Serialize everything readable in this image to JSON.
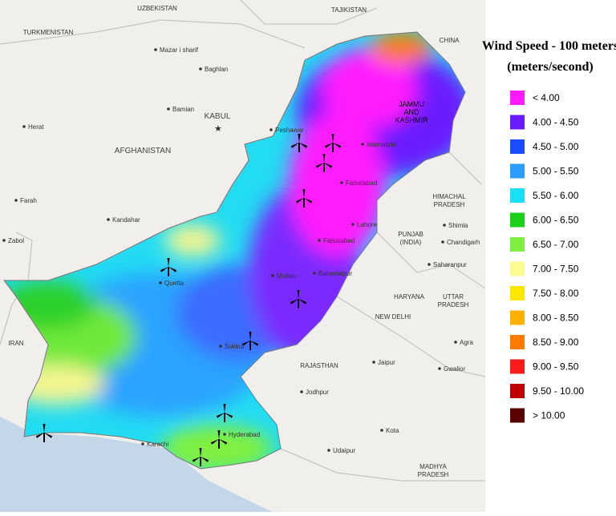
{
  "legend": {
    "title_lines": [
      "Wind Speed - 100 meters",
      "(meters/second)"
    ],
    "items": [
      {
        "label": "< 4.00",
        "color": "#ff1aff"
      },
      {
        "label": "4.00 - 4.50",
        "color": "#6a1aff"
      },
      {
        "label": "4.50 - 5.00",
        "color": "#1a4dff"
      },
      {
        "label": "5.00 - 5.50",
        "color": "#2a9dff"
      },
      {
        "label": "5.50 - 6.00",
        "color": "#1ae0f5"
      },
      {
        "label": "6.00 - 6.50",
        "color": "#1ad01a"
      },
      {
        "label": "6.50 - 7.00",
        "color": "#80f040"
      },
      {
        "label": "7.00 - 7.50",
        "color": "#fbfb90"
      },
      {
        "label": "7.50 - 8.00",
        "color": "#ffe600"
      },
      {
        "label": "8.00 - 8.50",
        "color": "#ffb000"
      },
      {
        "label": "8.50 - 9.00",
        "color": "#ff7a00"
      },
      {
        "label": "9.00 - 9.50",
        "color": "#ff1a1a"
      },
      {
        "label": "9.50 - 10.00",
        "color": "#c00000"
      },
      {
        "label": "> 10.00",
        "color": "#5a0000"
      }
    ]
  },
  "places": [
    {
      "lines": [
        "UZBEKISTAN"
      ],
      "kind": "region"
    },
    {
      "lines": [
        "TAJIKISTAN"
      ],
      "kind": "region"
    },
    {
      "lines": [
        "TURKMENISTAN"
      ],
      "kind": "region"
    },
    {
      "lines": [
        "CHINA"
      ],
      "kind": "region"
    },
    {
      "lines": [
        "Mazar i sharif"
      ],
      "kind": "city"
    },
    {
      "lines": [
        "Baghlan"
      ],
      "kind": "city"
    },
    {
      "lines": [
        "Bamian"
      ],
      "kind": "city"
    },
    {
      "lines": [
        "KABUL"
      ],
      "kind": "capital"
    },
    {
      "lines": [
        "Herat"
      ],
      "kind": "city"
    },
    {
      "lines": [
        "AFGHANISTAN"
      ],
      "kind": "country"
    },
    {
      "lines": [
        "Farah"
      ],
      "kind": "city"
    },
    {
      "lines": [
        "Kandahar"
      ],
      "kind": "city"
    },
    {
      "lines": [
        "Zabol"
      ],
      "kind": "city"
    },
    {
      "lines": [
        "IRAN"
      ],
      "kind": "region"
    },
    {
      "lines": [
        "Peshawar"
      ],
      "kind": "city"
    },
    {
      "lines": [
        "Islamabad"
      ],
      "kind": "city"
    },
    {
      "lines": [
        "JAMMU",
        "AND",
        "KASHMIR"
      ],
      "kind": "inner"
    },
    {
      "lines": [
        "Faisalabad"
      ],
      "kind": "city"
    },
    {
      "lines": [
        "Lahore"
      ],
      "kind": "city"
    },
    {
      "lines": [
        "Faisalabad"
      ],
      "kind": "city"
    },
    {
      "lines": [
        "HIMACHAL",
        "PRADESH"
      ],
      "kind": "region"
    },
    {
      "lines": [
        "Shimla"
      ],
      "kind": "city"
    },
    {
      "lines": [
        "PUNJAB",
        "(INDIA)"
      ],
      "kind": "region"
    },
    {
      "lines": [
        "Chandigarh"
      ],
      "kind": "city"
    },
    {
      "lines": [
        "Saharanpur"
      ],
      "kind": "city"
    },
    {
      "lines": [
        "Quetta"
      ],
      "kind": "city"
    },
    {
      "lines": [
        "Multan"
      ],
      "kind": "city"
    },
    {
      "lines": [
        "Bahawalpur"
      ],
      "kind": "city"
    },
    {
      "lines": [
        "HARYANA"
      ],
      "kind": "region"
    },
    {
      "lines": [
        "UTTAR",
        "PRADESH"
      ],
      "kind": "region"
    },
    {
      "lines": [
        "NEW DELHI"
      ],
      "kind": "region"
    },
    {
      "lines": [
        "Sukkur"
      ],
      "kind": "city"
    },
    {
      "lines": [
        "Agra"
      ],
      "kind": "city"
    },
    {
      "lines": [
        "RAJASTHAN"
      ],
      "kind": "region"
    },
    {
      "lines": [
        "Jaipur"
      ],
      "kind": "city"
    },
    {
      "lines": [
        "Gwalior"
      ],
      "kind": "city"
    },
    {
      "lines": [
        "Jodhpur"
      ],
      "kind": "city"
    },
    {
      "lines": [
        "Karachi"
      ],
      "kind": "city"
    },
    {
      "lines": [
        "Hyderabad"
      ],
      "kind": "city"
    },
    {
      "lines": [
        "Kota"
      ],
      "kind": "city"
    },
    {
      "lines": [
        "Udaipur"
      ],
      "kind": "city"
    },
    {
      "lines": [
        "MADHYA",
        "PRADESH"
      ],
      "kind": "region"
    }
  ]
}
